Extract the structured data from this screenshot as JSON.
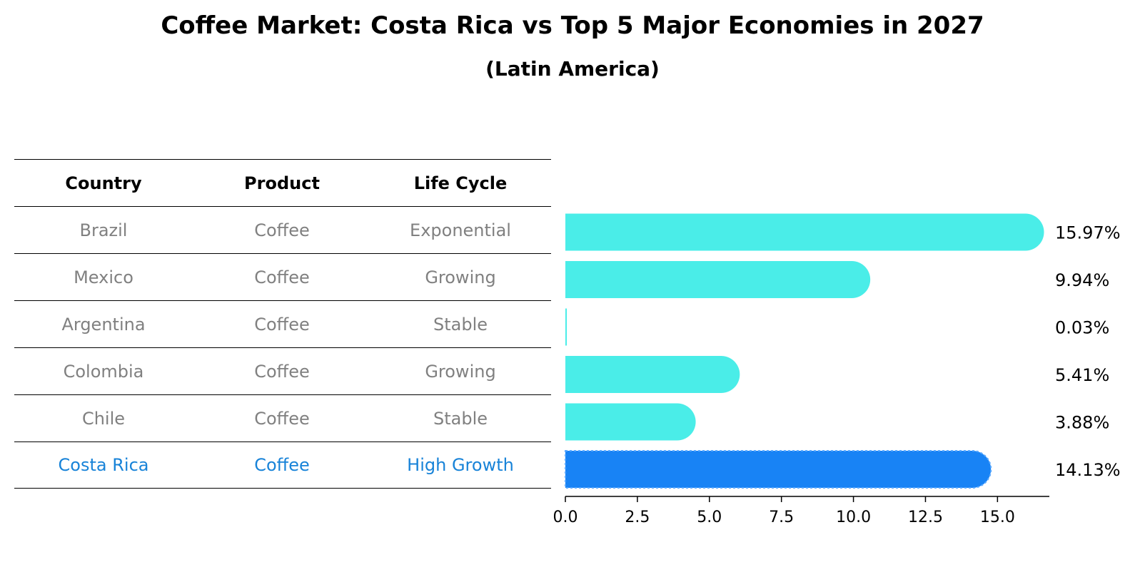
{
  "title": "Coffee Market: Costa Rica vs Top 5 Major Economies in 2027",
  "subtitle": "(Latin America)",
  "table": {
    "headers": [
      "Country",
      "Product",
      "Life Cycle"
    ],
    "rows": [
      {
        "country": "Brazil",
        "product": "Coffee",
        "life_cycle": "Exponential"
      },
      {
        "country": "Mexico",
        "product": "Coffee",
        "life_cycle": "Growing"
      },
      {
        "country": "Argentina",
        "product": "Coffee",
        "life_cycle": "Stable"
      },
      {
        "country": "Colombia",
        "product": "Coffee",
        "life_cycle": "Growing"
      },
      {
        "country": "Chile",
        "product": "Coffee",
        "life_cycle": "Stable"
      },
      {
        "country": "Costa Rica",
        "product": "Coffee",
        "life_cycle": "High Growth"
      }
    ]
  },
  "chart_data": {
    "type": "bar",
    "orientation": "horizontal",
    "categories": [
      "Brazil",
      "Mexico",
      "Argentina",
      "Colombia",
      "Chile",
      "Costa Rica"
    ],
    "values": [
      15.97,
      9.94,
      0.03,
      5.41,
      3.88,
      14.13
    ],
    "value_labels": [
      "15.97%",
      "9.94%",
      "0.03%",
      "5.41%",
      "3.88%",
      "14.13%"
    ],
    "highlight_index": 5,
    "xlim": [
      0,
      16.8
    ],
    "xticks": [
      0.0,
      2.5,
      5.0,
      7.5,
      10.0,
      12.5,
      15.0
    ],
    "xtick_labels": [
      "0.0",
      "2.5",
      "5.0",
      "7.5",
      "10.0",
      "12.5",
      "15.0"
    ],
    "xlabel": "",
    "ylabel": "",
    "colors": {
      "bar": "#4aede8",
      "highlight_bar": "#1883f5",
      "highlight_text": "#1883d8",
      "muted_text": "#808080"
    }
  }
}
